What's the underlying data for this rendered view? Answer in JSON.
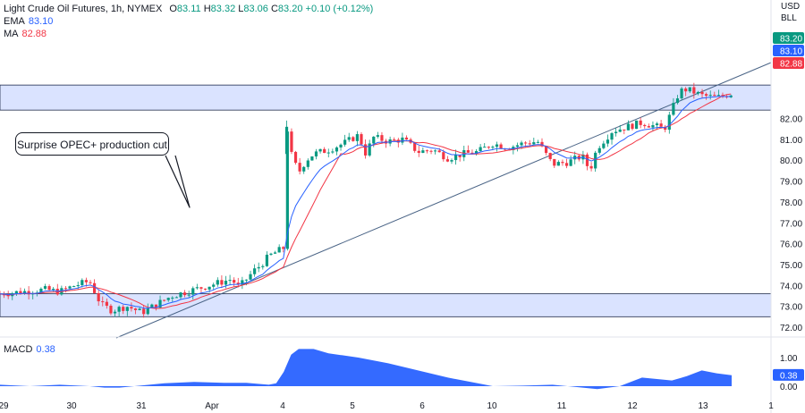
{
  "legend": {
    "symbol": "Light Crude Oil Futures, 1h, NYMEX",
    "o_label": "O",
    "o_value": "83.11",
    "h_label": "H",
    "h_value": "83.32",
    "l_label": "L",
    "l_value": "83.06",
    "c_label": "C",
    "c_value": "83.20",
    "change": "+0.10 (+0.12%)",
    "ema_label": "EMA",
    "ema_value": "83.10",
    "ma_label": "MA",
    "ma_value": "82.88"
  },
  "currency_line1": "USD",
  "currency_line2": "BLL",
  "annotation": "Surprise OPEC+ production cut",
  "macd": {
    "label": "MACD",
    "value": "0.38"
  },
  "price_tags": [
    {
      "value": "83.20",
      "color": "#089981"
    },
    {
      "value": "83.10",
      "color": "#2962ff"
    },
    {
      "value": "82.88",
      "color": "#f23645"
    }
  ],
  "chart_data": [
    {
      "type": "candlestick",
      "title": "Light Crude Oil Futures, 1h, NYMEX",
      "y_ticks": [
        "72.00",
        "73.00",
        "74.00",
        "75.00",
        "76.00",
        "77.00",
        "78.00",
        "79.00",
        "80.00",
        "81.00",
        "82.00"
      ],
      "ylim": [
        71.9,
        83.5
      ],
      "x_ticks": [
        "29",
        "30",
        "31",
        "Apr",
        "4",
        "5",
        "6",
        "10",
        "11",
        "12",
        "13",
        "1"
      ],
      "shaded_zones": [
        [
          82.4,
          83.6
        ],
        [
          72.5,
          73.6
        ]
      ],
      "trendline": {
        "from": [
          "29",
          71.85
        ],
        "to": [
          "13",
          81.8
        ]
      },
      "price_path": [
        [
          0,
          73.6
        ],
        [
          6,
          73.8
        ],
        [
          8,
          73.7
        ],
        [
          10,
          74.0
        ],
        [
          12,
          74.2
        ],
        [
          13.5,
          73.1
        ],
        [
          15,
          72.8
        ],
        [
          17,
          73.0
        ],
        [
          19,
          72.7
        ],
        [
          21,
          73.1
        ],
        [
          23,
          73.5
        ],
        [
          25,
          73.7
        ],
        [
          27,
          73.9
        ],
        [
          29,
          74.1
        ],
        [
          31,
          74.3
        ],
        [
          32,
          73.9
        ],
        [
          33,
          74.3
        ],
        [
          34,
          74.7
        ],
        [
          35,
          75.0
        ],
        [
          36,
          75.4
        ],
        [
          37,
          75.6
        ],
        [
          38,
          75.8
        ],
        [
          38.4,
          81.7
        ],
        [
          39,
          80.3
        ],
        [
          40,
          79.4
        ],
        [
          41,
          80.0
        ],
        [
          42,
          80.3
        ],
        [
          44,
          80.5
        ],
        [
          46,
          80.8
        ],
        [
          48,
          81.2
        ],
        [
          49,
          80.3
        ],
        [
          50,
          81.1
        ],
        [
          52,
          80.9
        ],
        [
          54,
          81.0
        ],
        [
          56,
          80.4
        ],
        [
          58,
          80.5
        ],
        [
          60,
          80.1
        ],
        [
          62,
          80.3
        ],
        [
          64,
          80.4
        ],
        [
          66,
          80.8
        ],
        [
          68,
          80.6
        ],
        [
          70,
          80.8
        ],
        [
          72,
          80.9
        ],
        [
          74,
          79.8
        ],
        [
          76,
          79.9
        ],
        [
          78,
          80.2
        ],
        [
          79,
          79.5
        ],
        [
          80,
          80.6
        ],
        [
          82,
          81.4
        ],
        [
          84,
          81.6
        ],
        [
          86,
          81.8
        ],
        [
          88,
          81.6
        ],
        [
          89,
          81.5
        ],
        [
          90,
          82.4
        ],
        [
          91,
          83.3
        ],
        [
          92,
          83.4
        ],
        [
          94,
          83.1
        ],
        [
          96,
          83.0
        ],
        [
          98,
          83.2
        ]
      ]
    },
    {
      "type": "area",
      "title": "MACD",
      "y_ticks": [
        "1.00",
        "0.00"
      ],
      "ylim": [
        -0.2,
        1.5
      ],
      "values": [
        [
          0,
          0.05
        ],
        [
          4,
          0.0
        ],
        [
          8,
          0.05
        ],
        [
          12,
          0.0
        ],
        [
          14,
          -0.05
        ],
        [
          16,
          -0.05
        ],
        [
          18,
          0.0
        ],
        [
          22,
          0.1
        ],
        [
          26,
          0.15
        ],
        [
          30,
          0.12
        ],
        [
          33,
          0.12
        ],
        [
          36,
          0.05
        ],
        [
          37,
          0.1
        ],
        [
          38,
          0.5
        ],
        [
          39,
          1.1
        ],
        [
          40,
          1.3
        ],
        [
          42,
          1.3
        ],
        [
          44,
          1.15
        ],
        [
          48,
          1.0
        ],
        [
          52,
          0.8
        ],
        [
          56,
          0.55
        ],
        [
          60,
          0.3
        ],
        [
          64,
          0.1
        ],
        [
          66,
          0.0
        ],
        [
          70,
          0.02
        ],
        [
          74,
          0.05
        ],
        [
          76,
          0.0
        ],
        [
          80,
          -0.1
        ],
        [
          83,
          0.0
        ],
        [
          86,
          0.3
        ],
        [
          88,
          0.25
        ],
        [
          90,
          0.2
        ],
        [
          92,
          0.35
        ],
        [
          94,
          0.55
        ],
        [
          96,
          0.45
        ],
        [
          98,
          0.38
        ]
      ]
    }
  ]
}
